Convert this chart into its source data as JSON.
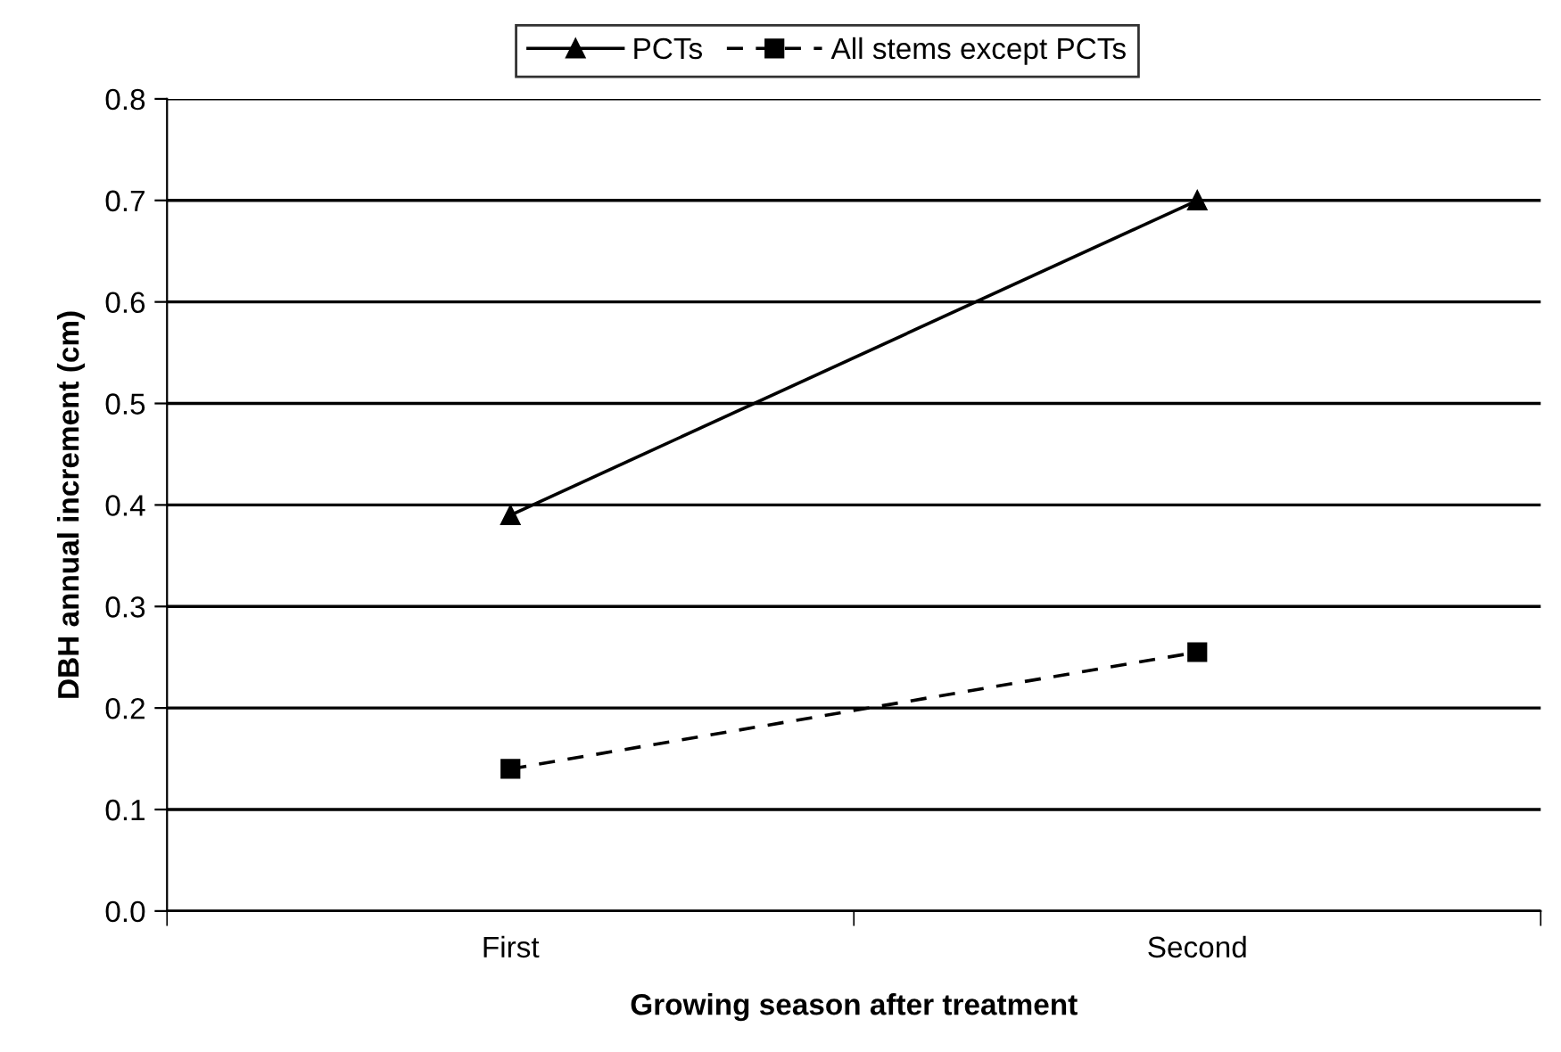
{
  "chart_data": {
    "type": "line",
    "xlabel": "Growing season after treatment",
    "ylabel": "DBH annual increment (cm)",
    "categories": [
      "First",
      "Second"
    ],
    "series": [
      {
        "name": "PCTs",
        "color": "#000000",
        "values": [
          0.39,
          0.7
        ],
        "marker": "triangle",
        "line_style": "solid"
      },
      {
        "name": "All stems except PCTs",
        "color": "#000000",
        "values": [
          0.14,
          0.255
        ],
        "marker": "square",
        "line_style": "dashed"
      }
    ],
    "ylim": [
      0,
      0.8
    ],
    "yticks": [
      {
        "value": 0,
        "label": "0.0"
      },
      0.1,
      0.2,
      0.3,
      0.4,
      0.5,
      0.6,
      0.7,
      0.8
    ],
    "grid": "y",
    "legend": "top"
  }
}
